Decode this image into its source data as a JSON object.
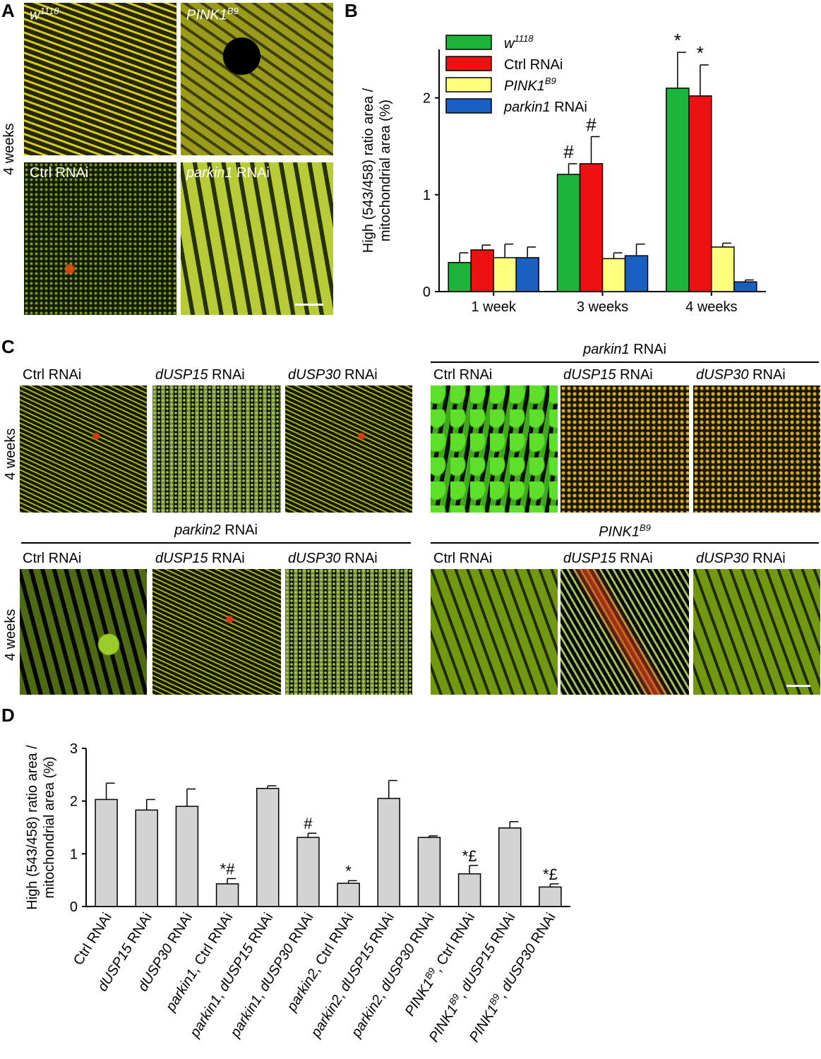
{
  "panel_A": {
    "letter": "A",
    "side_label": "4 weeks",
    "images": [
      {
        "label": "w",
        "sup": "1118",
        "italic": true,
        "tone": "yellow-striated"
      },
      {
        "label": "PINK1",
        "sup": "B9",
        "italic": true,
        "tone": "diffuse-yellow"
      },
      {
        "label": "Ctrl RNAi",
        "sup": "",
        "italic": false,
        "tone": "punctate-green-red"
      },
      {
        "label": "parkin1",
        "suffix": " RNAi",
        "italic": true,
        "tone": "swollen-green"
      }
    ]
  },
  "panel_B": {
    "letter": "B",
    "legend": [
      {
        "label": "w",
        "sup": "1118",
        "suffix": "",
        "italic": true,
        "color": "#1db33a"
      },
      {
        "label": "Ctrl RNAi",
        "sup": "",
        "suffix": "",
        "italic": false,
        "color": "#ee1111"
      },
      {
        "label": "PINK1",
        "sup": "B9",
        "suffix": "",
        "italic": true,
        "color": "#ffff80"
      },
      {
        "label": "parkin1",
        "sup": "",
        "suffix": " RNAi",
        "italic": true,
        "color": "#1a5fc0"
      }
    ]
  },
  "panel_C": {
    "letter": "C",
    "side_label_top": "4 weeks",
    "side_label_bottom": "4 weeks",
    "group_titles": {
      "top_right": {
        "text": "parkin1",
        "suffix": " RNAi"
      },
      "bottom_left": {
        "text": "parkin2",
        "suffix": " RNAi"
      },
      "bottom_right": {
        "text": "PINK1",
        "sup": "B9"
      }
    },
    "column_labels": [
      {
        "italic": "",
        "plain": "Ctrl RNAi"
      },
      {
        "italic": "dUSP15",
        "plain": " RNAi"
      },
      {
        "italic": "dUSP30",
        "plain": " RNAi"
      }
    ]
  },
  "panel_D": {
    "letter": "D"
  },
  "chart_data": [
    {
      "type": "bar",
      "panel": "B",
      "ylabel": "High (543/458) ratio area / mitochondrial area (%)",
      "ylabel_lines": [
        "High (543/458) ratio area /",
        "mitochondrial area (%)"
      ],
      "categories": [
        "1 week",
        "3 weeks",
        "4 weeks"
      ],
      "ylim": [
        0,
        2.5
      ],
      "yticks": [
        0,
        1,
        2
      ],
      "series": [
        {
          "name": "w1118",
          "color": "#1db33a",
          "values": [
            0.3,
            1.21,
            2.1
          ],
          "errors": [
            0.1,
            0.11,
            0.37
          ],
          "annotations": [
            "",
            "#",
            "*"
          ]
        },
        {
          "name": "Ctrl RNAi",
          "color": "#ee1111",
          "values": [
            0.43,
            1.32,
            2.02
          ],
          "errors": [
            0.05,
            0.28,
            0.32
          ],
          "annotations": [
            "",
            "#",
            "*"
          ]
        },
        {
          "name": "PINK1B9",
          "color": "#ffff80",
          "values": [
            0.35,
            0.34,
            0.46
          ],
          "errors": [
            0.14,
            0.06,
            0.04
          ],
          "annotations": [
            "",
            "",
            ""
          ]
        },
        {
          "name": "parkin1 RNAi",
          "color": "#1a5fc0",
          "values": [
            0.35,
            0.37,
            0.1
          ],
          "errors": [
            0.11,
            0.12,
            0.02
          ],
          "annotations": [
            "",
            "",
            ""
          ]
        }
      ]
    },
    {
      "type": "bar",
      "panel": "D",
      "ylabel": "High (543/458) ratio area / mitochondrial area (%)",
      "ylabel_lines": [
        "High (543/458) ratio area /",
        "mitochondrial area (%)"
      ],
      "categories": [
        "Ctrl RNAi",
        "dUSP15 RNAi",
        "dUSP30 RNAi",
        "parkin1, Ctrl RNAi",
        "parkin1, dUSP15 RNAi",
        "parkin1, dUSP30 RNAi",
        "parkin2, Ctrl RNAi",
        "parkin2, dUSP15 RNAi",
        "parkin2, dUSP30 RNAi",
        "PINK1B9, Ctrl RNAi",
        "PINK1B9, dUSP15 RNAi",
        "PINK1B9, dUSP30 RNAi"
      ],
      "category_parts": [
        [
          {
            "t": "Ctrl RNAi",
            "i": false
          }
        ],
        [
          {
            "t": "dUSP15",
            "i": true
          },
          {
            "t": " RNAi",
            "i": false
          }
        ],
        [
          {
            "t": "dUSP30",
            "i": true
          },
          {
            "t": " RNAi",
            "i": false
          }
        ],
        [
          {
            "t": "parkin1",
            "i": true
          },
          {
            "t": ", Ctrl RNAi",
            "i": false
          }
        ],
        [
          {
            "t": "parkin1",
            "i": true
          },
          {
            "t": ", ",
            "i": false
          },
          {
            "t": "dUSP15",
            "i": true
          },
          {
            "t": " RNAi",
            "i": false
          }
        ],
        [
          {
            "t": "parkin1",
            "i": true
          },
          {
            "t": ", ",
            "i": false
          },
          {
            "t": "dUSP30",
            "i": true
          },
          {
            "t": " RNAi",
            "i": false
          }
        ],
        [
          {
            "t": "parkin2",
            "i": true
          },
          {
            "t": ", Ctrl RNAi",
            "i": false
          }
        ],
        [
          {
            "t": "parkin2",
            "i": true
          },
          {
            "t": ", ",
            "i": false
          },
          {
            "t": "dUSP15",
            "i": true
          },
          {
            "t": " RNAi",
            "i": false
          }
        ],
        [
          {
            "t": "parkin2",
            "i": true
          },
          {
            "t": ", ",
            "i": false
          },
          {
            "t": "dUSP30",
            "i": true
          },
          {
            "t": " RNAi",
            "i": false
          }
        ],
        [
          {
            "t": "PINK1",
            "i": true
          },
          {
            "t": "B9",
            "i": true,
            "sup": true
          },
          {
            "t": ", Ctrl RNAi",
            "i": false
          }
        ],
        [
          {
            "t": "PINK1",
            "i": true
          },
          {
            "t": "B9",
            "i": true,
            "sup": true
          },
          {
            "t": ", ",
            "i": false
          },
          {
            "t": "dUSP15",
            "i": true
          },
          {
            "t": " RNAi",
            "i": false
          }
        ],
        [
          {
            "t": "PINK1",
            "i": true
          },
          {
            "t": "B9",
            "i": true,
            "sup": true
          },
          {
            "t": ", ",
            "i": false
          },
          {
            "t": "dUSP30",
            "i": true
          },
          {
            "t": " RNAi",
            "i": false
          }
        ]
      ],
      "values": [
        2.03,
        1.83,
        1.9,
        0.43,
        2.24,
        1.31,
        0.44,
        2.05,
        1.31,
        0.62,
        1.49,
        0.37
      ],
      "errors": [
        0.31,
        0.2,
        0.33,
        0.1,
        0.05,
        0.08,
        0.05,
        0.34,
        0.03,
        0.16,
        0.12,
        0.06
      ],
      "annotations": [
        "",
        "",
        "",
        "*#",
        "",
        "#",
        "*",
        "",
        "",
        "*£",
        "",
        "*£"
      ],
      "bar_color": "#d3d3d3",
      "ylim": [
        0,
        3
      ],
      "yticks": [
        0,
        1,
        2,
        3
      ]
    }
  ]
}
